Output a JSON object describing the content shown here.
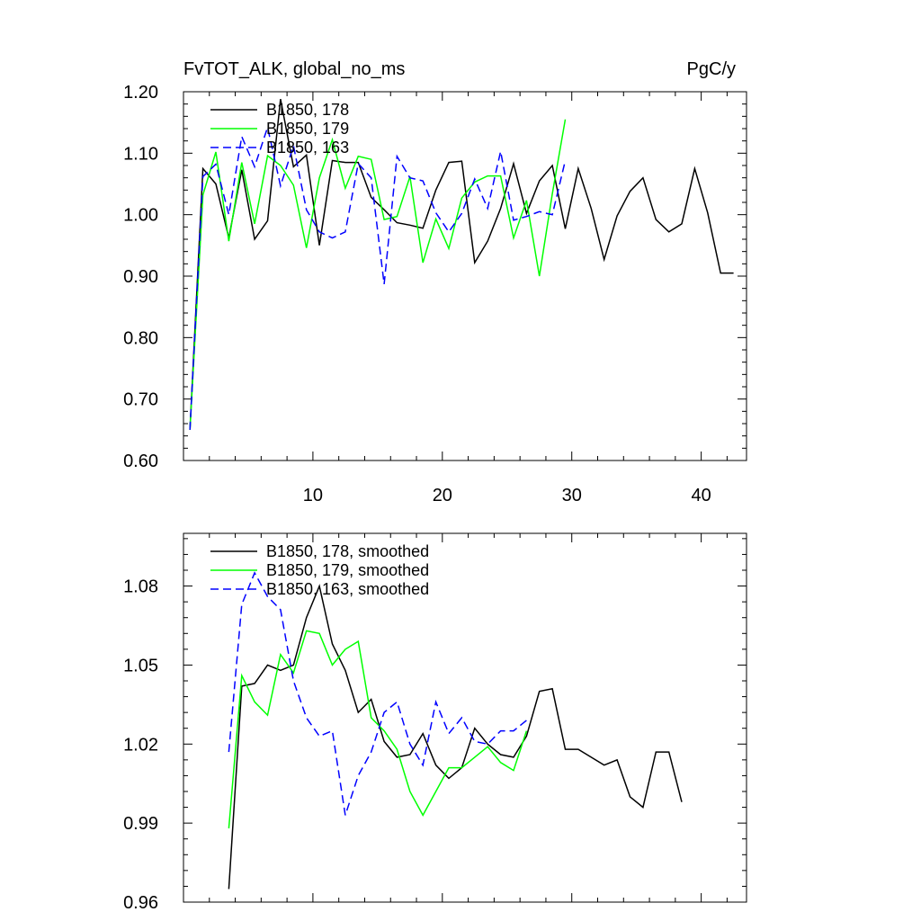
{
  "header": {
    "left_title": "FvTOT_ALK, global_no_ms",
    "right_title": "PgC/y"
  },
  "colors": {
    "run178": "#000000",
    "run179": "#00ff00",
    "run163": "#0000ff"
  },
  "chart_data": [
    {
      "type": "line",
      "xlim": [
        0,
        43.5
      ],
      "ylim": [
        0.6,
        1.2
      ],
      "yticks": [
        0.6,
        0.7,
        0.8,
        0.9,
        1.0,
        1.1,
        1.2
      ],
      "ytick_labels": [
        "0.60",
        "0.70",
        "0.80",
        "0.90",
        "1.00",
        "1.10",
        "1.20"
      ],
      "xticks": [
        10,
        20,
        30,
        40
      ],
      "xtick_labels": [
        "10",
        "20",
        "30",
        "40"
      ],
      "legend_position": "top-left",
      "series": [
        {
          "name": "B1850, 178",
          "color": "#000000",
          "dash": "solid",
          "x": [
            0.5,
            1.5,
            2.5,
            3.5,
            4.5,
            5.5,
            6.5,
            7.5,
            8.5,
            9.5,
            10.5,
            11.5,
            12.5,
            13.5,
            14.5,
            15.5,
            16.5,
            17.5,
            18.5,
            19.5,
            20.5,
            21.5,
            22.5,
            23.5,
            24.5,
            25.5,
            26.5,
            27.5,
            28.5,
            29.5,
            30.5,
            31.5,
            32.5,
            33.5,
            34.5,
            35.5,
            36.5,
            37.5,
            38.5,
            39.5,
            40.5,
            41.5,
            42.5
          ],
          "values": [
            0.65,
            1.075,
            1.05,
            0.962,
            1.073,
            0.96,
            0.99,
            1.188,
            1.078,
            1.097,
            0.95,
            1.088,
            1.085,
            1.085,
            1.028,
            1.008,
            0.987,
            0.983,
            0.978,
            1.04,
            1.085,
            1.087,
            0.922,
            0.957,
            1.01,
            1.083,
            1.002,
            1.055,
            1.08,
            0.977,
            1.075,
            1.01,
            0.927,
            0.998,
            1.038,
            1.06,
            0.992,
            0.972,
            0.985,
            1.075,
            1.003,
            0.905,
            0.905
          ]
        },
        {
          "name": "B1850, 179",
          "color": "#00ff00",
          "dash": "solid",
          "x": [
            0.5,
            1.5,
            2.5,
            3.5,
            4.5,
            5.5,
            6.5,
            7.5,
            8.5,
            9.5,
            10.5,
            11.5,
            12.5,
            13.5,
            14.5,
            15.5,
            16.5,
            17.5,
            18.5,
            19.5,
            20.5,
            21.5,
            22.5,
            23.5,
            24.5,
            25.5,
            26.5,
            27.5,
            28.5,
            29.5
          ],
          "values": [
            0.65,
            1.032,
            1.102,
            0.957,
            1.085,
            0.985,
            1.096,
            1.08,
            1.048,
            0.946,
            1.06,
            1.122,
            1.043,
            1.095,
            1.09,
            0.992,
            0.997,
            1.062,
            0.922,
            0.993,
            0.945,
            1.027,
            1.053,
            1.063,
            1.063,
            0.962,
            1.023,
            0.9,
            1.034,
            1.155
          ]
        },
        {
          "name": "B1850, 163",
          "color": "#0000ff",
          "dash": "dashed",
          "x": [
            0.5,
            1.5,
            2.5,
            3.5,
            4.5,
            5.5,
            6.5,
            7.5,
            8.5,
            9.5,
            10.5,
            11.5,
            12.5,
            13.5,
            14.5,
            15.5,
            16.5,
            17.5,
            18.5,
            19.5,
            20.5,
            21.5,
            22.5,
            23.5,
            24.5,
            25.5,
            26.5,
            27.5,
            28.5,
            29.5
          ],
          "values": [
            0.65,
            1.062,
            1.082,
            1.0,
            1.127,
            1.078,
            1.142,
            1.047,
            1.112,
            1.008,
            0.972,
            0.962,
            0.972,
            1.083,
            1.06,
            0.887,
            1.095,
            1.06,
            1.055,
            1.003,
            0.972,
            1.002,
            1.058,
            1.01,
            1.103,
            0.991,
            0.997,
            1.005,
            1.0,
            1.088
          ]
        }
      ]
    },
    {
      "type": "line",
      "xlim": [
        0,
        43.5
      ],
      "ylim": [
        0.96,
        1.1
      ],
      "yticks": [
        0.96,
        0.99,
        1.02,
        1.05,
        1.08
      ],
      "ytick_labels": [
        "0.96",
        "0.99",
        "1.02",
        "1.05",
        "1.08"
      ],
      "xticks": [
        10,
        20,
        30,
        40
      ],
      "xtick_labels": [],
      "legend_position": "top-left",
      "series": [
        {
          "name": "B1850, 178, smoothed",
          "color": "#000000",
          "dash": "solid",
          "x": [
            3.5,
            4.5,
            5.5,
            6.5,
            7.5,
            8.5,
            9.5,
            10.5,
            11.5,
            12.5,
            13.5,
            14.5,
            15.5,
            16.5,
            17.5,
            18.5,
            19.5,
            20.5,
            21.5,
            22.5,
            23.5,
            24.5,
            25.5,
            26.5,
            27.5,
            28.5,
            29.5,
            30.5,
            31.5,
            32.5,
            33.5,
            34.5,
            35.5,
            36.5,
            37.5,
            38.5
          ],
          "values": [
            0.965,
            1.042,
            1.043,
            1.05,
            1.048,
            1.05,
            1.068,
            1.08,
            1.058,
            1.048,
            1.032,
            1.037,
            1.021,
            1.015,
            1.016,
            1.024,
            1.012,
            1.007,
            1.011,
            1.026,
            1.02,
            1.016,
            1.015,
            1.023,
            1.04,
            1.041,
            1.018,
            1.018,
            1.015,
            1.012,
            1.014,
            1.0,
            0.996,
            1.017,
            1.017,
            0.998
          ]
        },
        {
          "name": "B1850, 179, smoothed",
          "color": "#00ff00",
          "dash": "solid",
          "x": [
            3.5,
            4.5,
            5.5,
            6.5,
            7.5,
            8.5,
            9.5,
            10.5,
            11.5,
            12.5,
            13.5,
            14.5,
            15.5,
            16.5,
            17.5,
            18.5,
            19.5,
            20.5,
            21.5,
            22.5,
            23.5,
            24.5,
            25.5,
            26.5
          ],
          "values": [
            0.988,
            1.046,
            1.036,
            1.031,
            1.054,
            1.047,
            1.063,
            1.062,
            1.05,
            1.056,
            1.059,
            1.03,
            1.025,
            1.018,
            1.002,
            0.993,
            1.002,
            1.011,
            1.011,
            1.015,
            1.019,
            1.013,
            1.01,
            1.025
          ]
        },
        {
          "name": "B1850, 163, smoothed",
          "color": "#0000ff",
          "dash": "dashed",
          "x": [
            3.5,
            4.5,
            5.5,
            6.5,
            7.5,
            8.5,
            9.5,
            10.5,
            11.5,
            12.5,
            13.5,
            14.5,
            15.5,
            16.5,
            17.5,
            18.5,
            19.5,
            20.5,
            21.5,
            22.5,
            23.5,
            24.5,
            25.5,
            26.5
          ],
          "values": [
            1.017,
            1.073,
            1.085,
            1.076,
            1.071,
            1.044,
            1.03,
            1.023,
            1.025,
            0.993,
            1.008,
            1.017,
            1.032,
            1.036,
            1.02,
            1.012,
            1.036,
            1.024,
            1.03,
            1.021,
            1.02,
            1.025,
            1.025,
            1.029
          ]
        }
      ]
    }
  ]
}
